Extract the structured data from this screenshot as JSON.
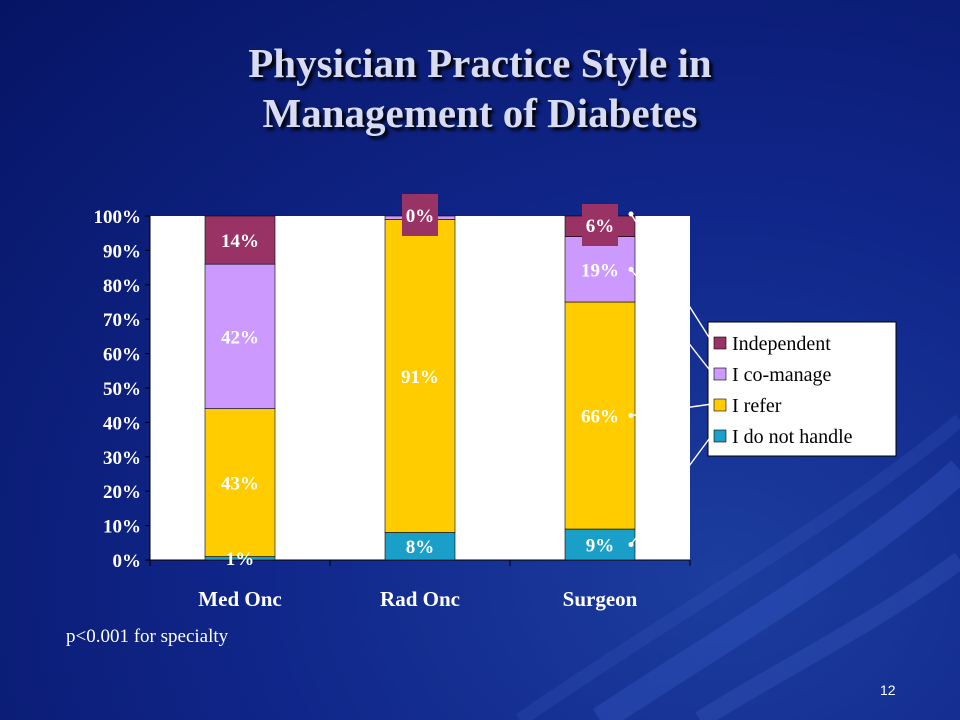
{
  "slide": {
    "title_line1": "Physician Practice Style in",
    "title_line2": "Management of Diabetes",
    "note": "p<0.001 for specialty",
    "slide_number": "12"
  },
  "colors": {
    "plot_bg": "#ffffff",
    "axis": "#000000",
    "label_box": "#993366"
  },
  "chart_data": {
    "type": "bar",
    "stacked": true,
    "categories": [
      "Med Onc",
      "Rad Onc",
      "Surgeon"
    ],
    "ylim": [
      0,
      100
    ],
    "yticks": [
      0,
      10,
      20,
      30,
      40,
      50,
      60,
      70,
      80,
      90,
      100
    ],
    "ytick_labels": [
      "0%",
      "10%",
      "20%",
      "30%",
      "40%",
      "50%",
      "60%",
      "70%",
      "80%",
      "90%",
      "100%"
    ],
    "series": [
      {
        "name": "I do not handle",
        "color": "#1aa0c8",
        "values": [
          1,
          8,
          9
        ],
        "labels": [
          "1%",
          "8%",
          "9%"
        ]
      },
      {
        "name": "I refer",
        "color": "#ffcc00",
        "values": [
          43,
          91,
          66
        ],
        "labels": [
          "43%",
          "91%",
          "66%"
        ]
      },
      {
        "name": "I co-manage",
        "color": "#cc99ff",
        "values": [
          42,
          1,
          19
        ],
        "labels": [
          "42%",
          "",
          "19%"
        ]
      },
      {
        "name": "Independent",
        "color": "#993366",
        "values": [
          14,
          0,
          6
        ],
        "labels": [
          "14%",
          "0%",
          "6%"
        ]
      }
    ],
    "legend_order": [
      "Independent",
      "I co-manage",
      "I refer",
      "I do not handle"
    ],
    "legend_position": "right",
    "grid": false
  }
}
